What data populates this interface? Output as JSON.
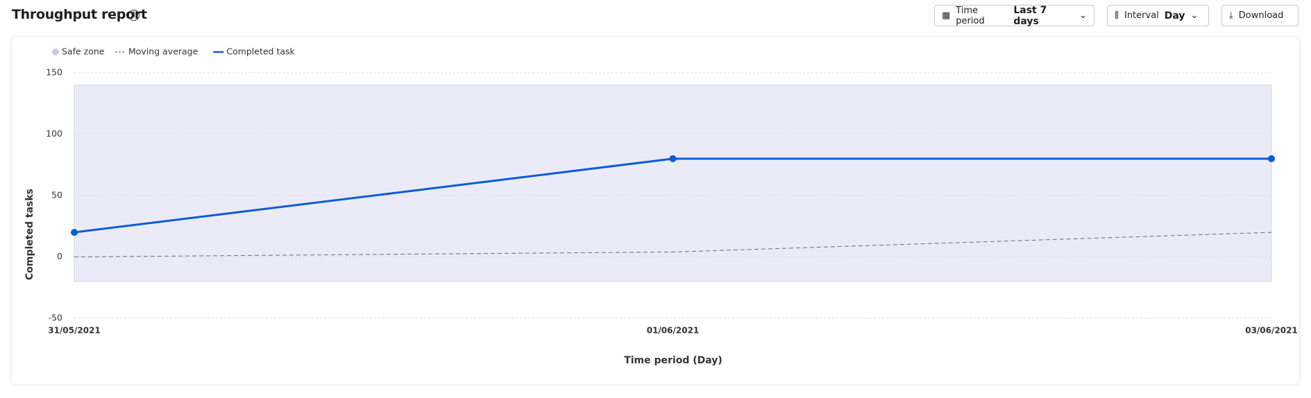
{
  "header": {
    "title": "Throughput report",
    "controls": {
      "time_period_label": "Time period",
      "time_period_value": "Last 7 days",
      "interval_label": "Interval",
      "interval_value": "Day",
      "download": "Download"
    }
  },
  "chart_data": {
    "type": "line",
    "x_label": "Time period (Day)",
    "y_label": "Completed tasks",
    "categories": [
      "31/05/2021",
      "01/06/2021",
      "03/06/2021"
    ],
    "safe_zone": {
      "name": "Safe zone",
      "color": "#ebebf8",
      "range": [
        -20,
        140
      ]
    },
    "series": [
      {
        "name": "Moving average",
        "color": "#6b6b78",
        "dashed": true,
        "values": [
          0,
          4,
          20
        ]
      },
      {
        "name": "Completed task",
        "color": "#0b5bd8",
        "dashed": false,
        "markers": true,
        "values": [
          20,
          80,
          80
        ]
      }
    ],
    "ylim": [
      -50,
      150
    ],
    "yticks": [
      -50,
      0,
      50,
      100,
      150
    ],
    "grid": true
  }
}
